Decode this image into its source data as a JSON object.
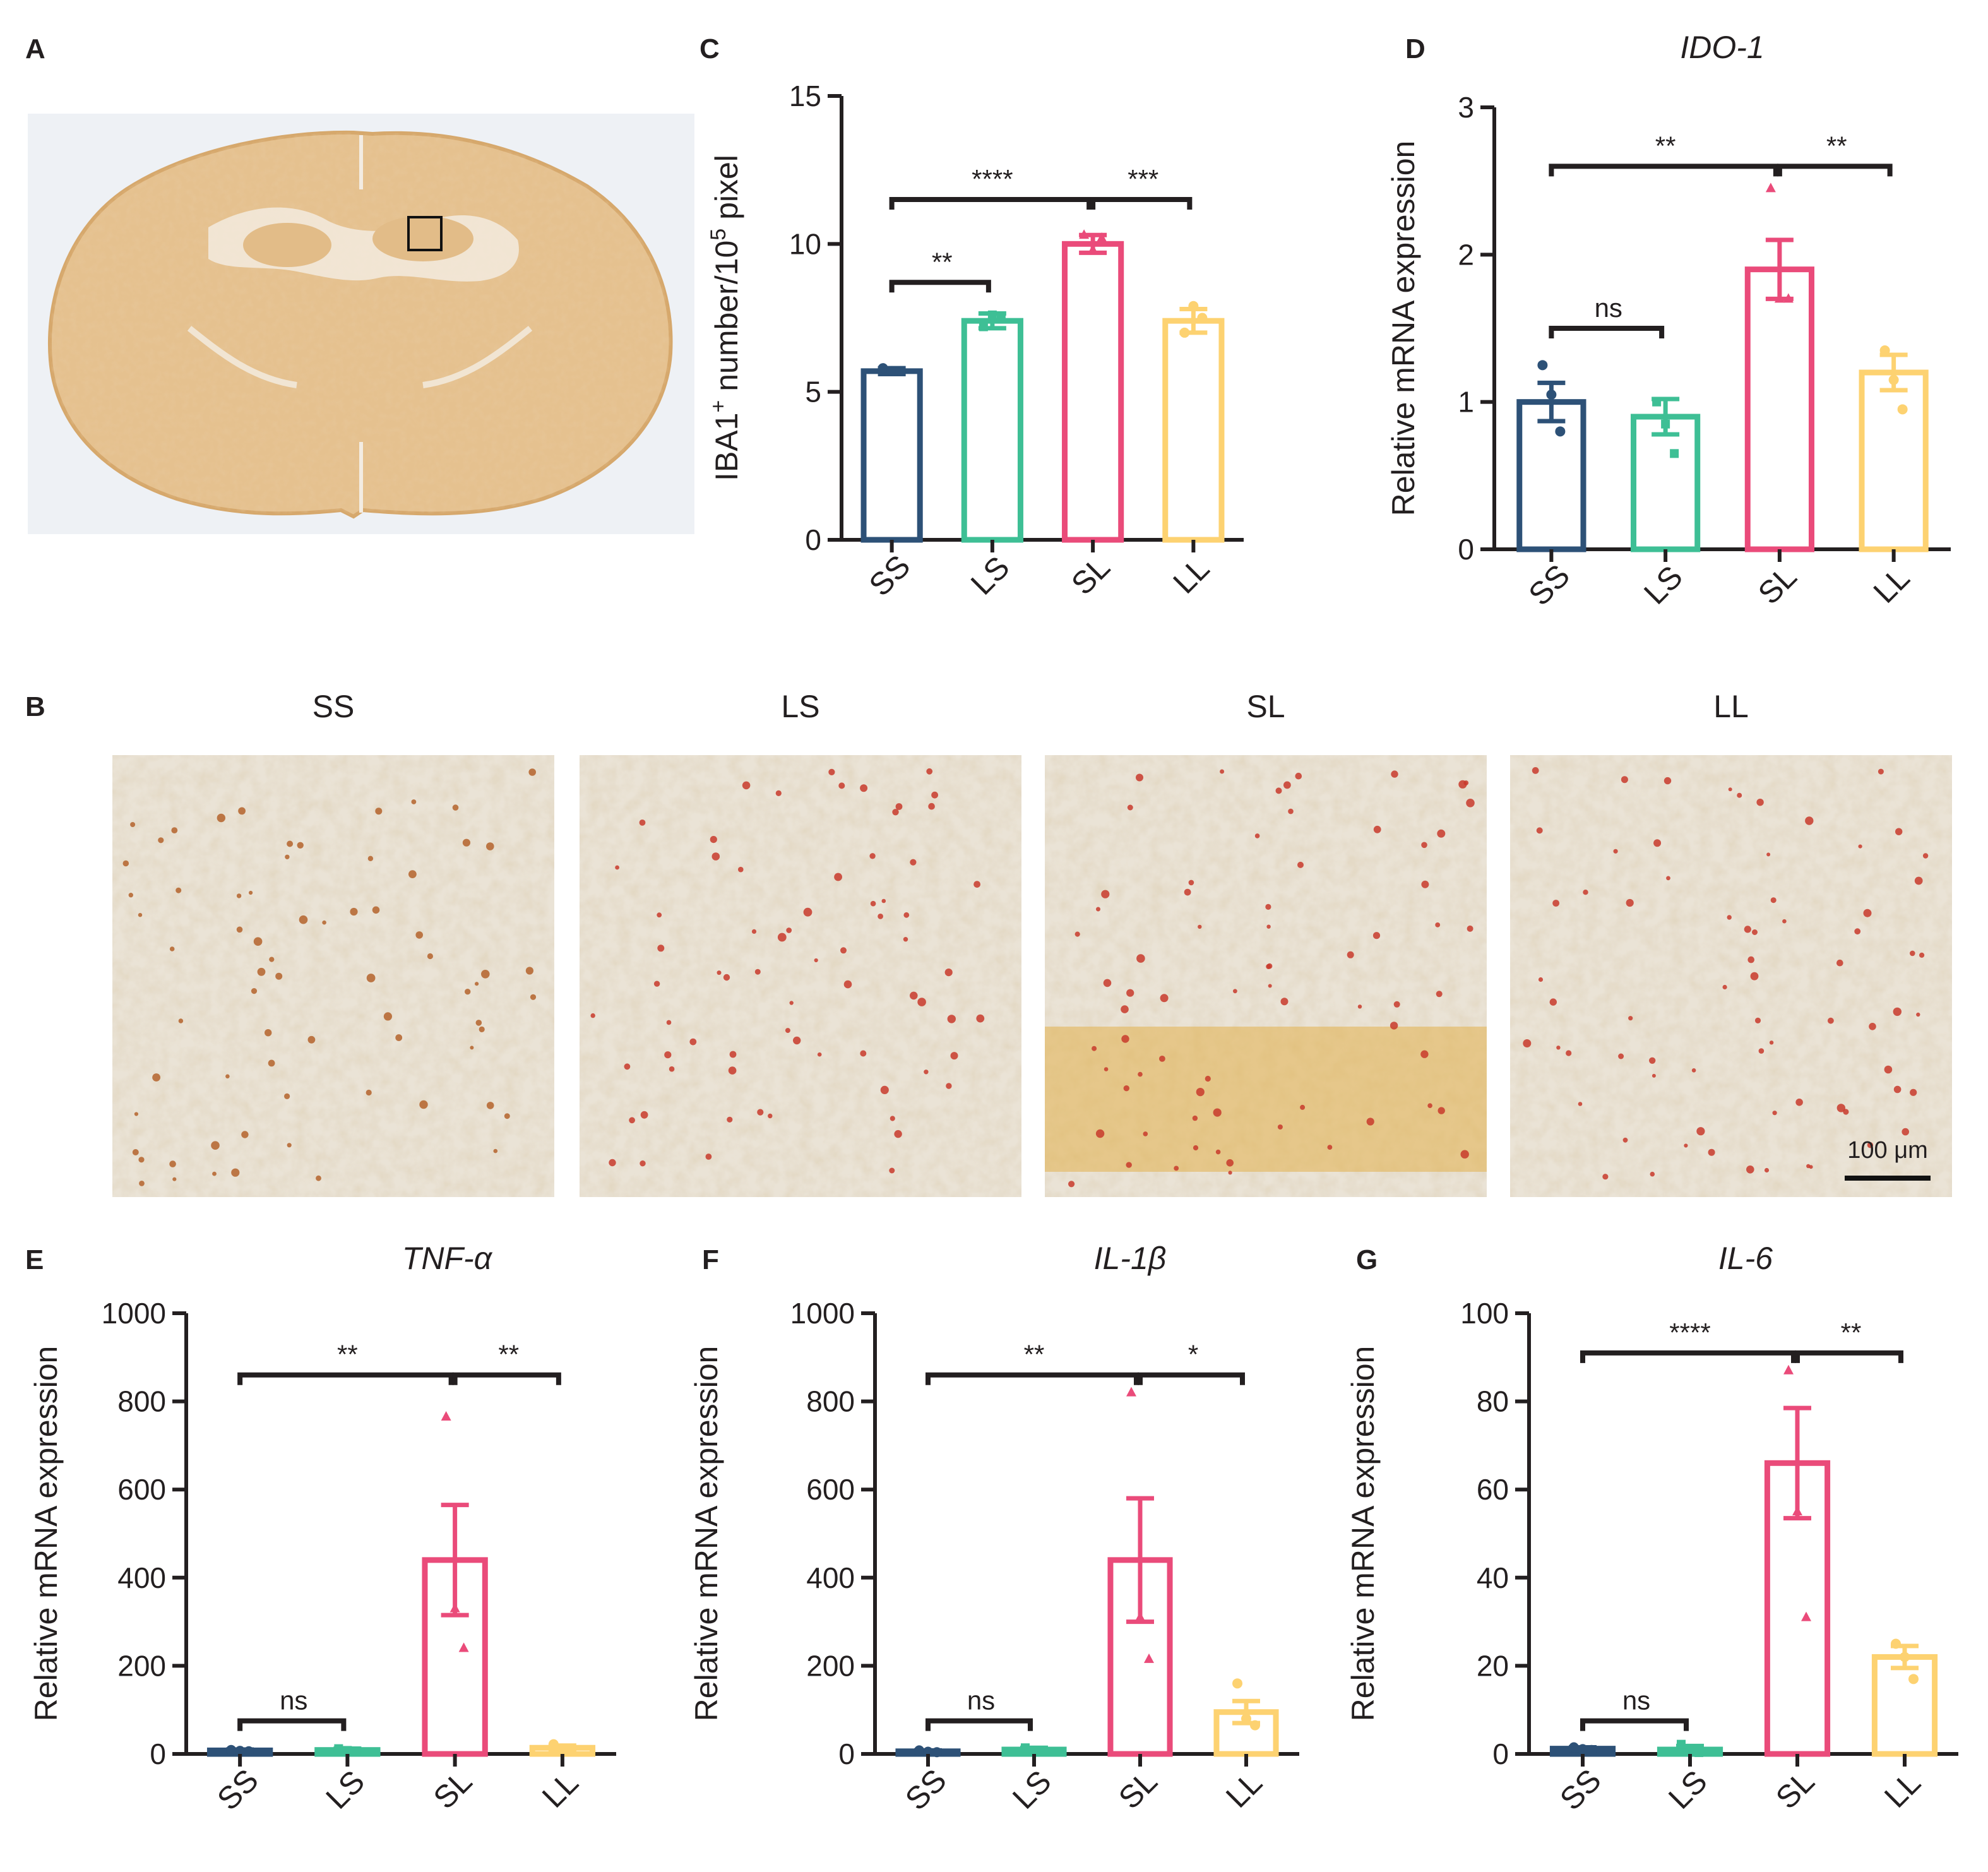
{
  "panels": {
    "A": {
      "label": "A"
    },
    "B": {
      "label": "B",
      "groups": [
        "SS",
        "LS",
        "SL",
        "LL"
      ],
      "scale_bar": "100 μm"
    }
  },
  "colors": {
    "SS": "#2d5177",
    "LS": "#3ebf95",
    "SL": "#ea4b7a",
    "LL": "#fdd271",
    "brace": "#231f20",
    "tissue": "#e8c698",
    "tissue_bg": "#eef1f5"
  },
  "chart_data": [
    {
      "id": "C",
      "label": "C",
      "type": "bar",
      "title": "",
      "ylabel": "IBA1+ number/10^5 pixel",
      "ylabel_parts": {
        "a": "IBA1",
        "sup1": "+",
        "b": " number/10",
        "sup2": "5",
        "c": " pixel"
      },
      "categories": [
        "SS",
        "LS",
        "SL",
        "LL"
      ],
      "values": [
        5.7,
        7.4,
        10.0,
        7.4
      ],
      "errors": [
        0.1,
        0.25,
        0.3,
        0.4
      ],
      "points": [
        [
          5.8,
          5.7,
          5.7
        ],
        [
          7.2,
          7.6,
          7.5
        ],
        [
          10.3,
          9.8,
          10.2
        ],
        [
          7.0,
          7.9,
          7.5
        ]
      ],
      "markers": [
        "circle",
        "square",
        "triangle",
        "circle"
      ],
      "ylim": [
        0,
        15
      ],
      "yticks": [
        0,
        5,
        10,
        15
      ],
      "ytick_labels": [
        "0",
        "5",
        "10",
        "15"
      ],
      "comparisons": [
        {
          "from": 0,
          "to": 1,
          "text": "**",
          "level": 8.7
        },
        {
          "from": 0,
          "to": 2,
          "text": "****",
          "level": 11.5
        },
        {
          "from": 2,
          "to": 3,
          "text": "***",
          "level": 11.5
        }
      ]
    },
    {
      "id": "D",
      "label": "D",
      "type": "bar",
      "title": "IDO-1",
      "ylabel": "Relative mRNA expression",
      "categories": [
        "SS",
        "LS",
        "SL",
        "LL"
      ],
      "values": [
        1.0,
        0.9,
        1.9,
        1.2
      ],
      "errors": [
        0.13,
        0.12,
        0.2,
        0.12
      ],
      "points": [
        [
          1.25,
          1.05,
          0.8
        ],
        [
          1.0,
          0.85,
          0.65
        ],
        [
          2.45,
          1.7,
          1.7
        ],
        [
          1.35,
          1.15,
          0.95
        ]
      ],
      "markers": [
        "circle",
        "square",
        "triangle",
        "circle"
      ],
      "ylim": [
        0,
        3
      ],
      "yticks": [
        0,
        1,
        2,
        3
      ],
      "ytick_labels": [
        "0",
        "1",
        "2",
        "3"
      ],
      "comparisons": [
        {
          "from": 0,
          "to": 1,
          "text": "ns",
          "level": 1.5
        },
        {
          "from": 0,
          "to": 2,
          "text": "**",
          "level": 2.6
        },
        {
          "from": 2,
          "to": 3,
          "text": "**",
          "level": 2.6
        }
      ]
    },
    {
      "id": "E",
      "label": "E",
      "type": "bar",
      "title": "TNF-α",
      "ylabel": "Relative mRNA expression",
      "categories": [
        "SS",
        "LS",
        "SL",
        "LL"
      ],
      "values": [
        8,
        9,
        440,
        14
      ],
      "errors": [
        2,
        3,
        125,
        5
      ],
      "points": [
        [
          9,
          7,
          6
        ],
        [
          12,
          8,
          7
        ],
        [
          765,
          330,
          240
        ],
        [
          22,
          12,
          8
        ]
      ],
      "markers": [
        "circle",
        "square",
        "triangle",
        "circle"
      ],
      "ylim": [
        0,
        1000
      ],
      "yticks": [
        0,
        200,
        400,
        600,
        800,
        1000
      ],
      "ytick_labels": [
        "0",
        "200",
        "400",
        "600",
        "800",
        "1000"
      ],
      "comparisons": [
        {
          "from": 0,
          "to": 1,
          "text": "ns",
          "level": 75
        },
        {
          "from": 0,
          "to": 2,
          "text": "**",
          "level": 860
        },
        {
          "from": 2,
          "to": 3,
          "text": "**",
          "level": 860
        }
      ]
    },
    {
      "id": "F",
      "label": "F",
      "type": "bar",
      "title": "IL-1β",
      "ylabel": "Relative mRNA expression",
      "categories": [
        "SS",
        "LS",
        "SL",
        "LL"
      ],
      "values": [
        6,
        10,
        440,
        95
      ],
      "errors": [
        2,
        4,
        140,
        25
      ],
      "points": [
        [
          8,
          5,
          4
        ],
        [
          14,
          8,
          6
        ],
        [
          820,
          310,
          215
        ],
        [
          160,
          80,
          65
        ]
      ],
      "markers": [
        "circle",
        "square",
        "triangle",
        "circle"
      ],
      "ylim": [
        0,
        1000
      ],
      "yticks": [
        0,
        200,
        400,
        600,
        800,
        1000
      ],
      "ytick_labels": [
        "0",
        "200",
        "400",
        "600",
        "800",
        "1000"
      ],
      "comparisons": [
        {
          "from": 0,
          "to": 1,
          "text": "ns",
          "level": 75
        },
        {
          "from": 0,
          "to": 2,
          "text": "**",
          "level": 860
        },
        {
          "from": 2,
          "to": 3,
          "text": "*",
          "level": 860
        }
      ]
    },
    {
      "id": "G",
      "label": "G",
      "type": "bar",
      "title": "IL-6",
      "ylabel": "Relative mRNA expression",
      "categories": [
        "SS",
        "LS",
        "SL",
        "LL"
      ],
      "values": [
        1.2,
        1.0,
        66,
        22
      ],
      "errors": [
        0.3,
        0.8,
        12.5,
        2.5
      ],
      "points": [
        [
          1.5,
          1.1,
          0.9
        ],
        [
          2.2,
          0.7,
          0.3
        ],
        [
          87,
          55,
          31
        ],
        [
          25,
          22,
          17
        ]
      ],
      "markers": [
        "circle",
        "square",
        "triangle",
        "circle"
      ],
      "ylim": [
        0,
        100
      ],
      "yticks": [
        0,
        20,
        40,
        60,
        80,
        100
      ],
      "ytick_labels": [
        "0",
        "20",
        "40",
        "60",
        "80",
        "100"
      ],
      "comparisons": [
        {
          "from": 0,
          "to": 1,
          "text": "ns",
          "level": 7.5
        },
        {
          "from": 0,
          "to": 2,
          "text": "****",
          "level": 91
        },
        {
          "from": 2,
          "to": 3,
          "text": "**",
          "level": 91
        }
      ]
    }
  ]
}
